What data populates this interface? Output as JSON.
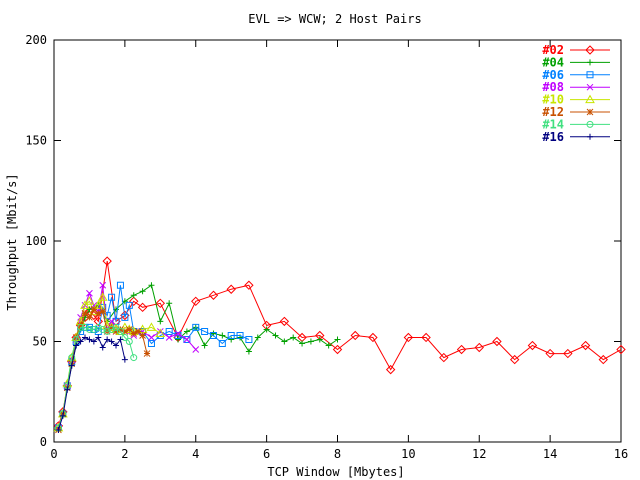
{
  "chart_data": {
    "type": "line",
    "title": "EVL => WCW; 2 Host Pairs",
    "xlabel": "TCP Window [Mbytes]",
    "ylabel": "Throughput [Mbit/s]",
    "xlim": [
      0,
      16
    ],
    "ylim": [
      0,
      200
    ],
    "xticks": [
      0,
      2,
      4,
      6,
      8,
      10,
      12,
      14,
      16
    ],
    "yticks": [
      0,
      50,
      100,
      150,
      200
    ],
    "grid": false,
    "legend_position": "top-right",
    "series": [
      {
        "name": "#02",
        "color": "#ff0000",
        "marker": "diamond",
        "x": [
          0.125,
          0.25,
          0.375,
          0.5,
          0.625,
          0.75,
          0.875,
          1.0,
          1.125,
          1.25,
          1.5,
          1.75,
          2.0,
          2.25,
          2.5,
          3.0,
          3.5,
          4.0,
          4.5,
          5.0,
          5.5,
          6.0,
          6.5,
          7.0,
          7.5,
          8.0,
          8.5,
          9.0,
          9.5,
          10.0,
          10.5,
          11.0,
          11.5,
          12.0,
          12.5,
          13.0,
          13.5,
          14.0,
          14.5,
          15.0,
          15.5,
          16.0
        ],
        "y": [
          8,
          15,
          28,
          40,
          52,
          58,
          62,
          65,
          63,
          60,
          90,
          60,
          63,
          70,
          67,
          69,
          52,
          70,
          73,
          76,
          78,
          58,
          60,
          52,
          53,
          46,
          53,
          52,
          36,
          52,
          52,
          42,
          46,
          47,
          50,
          41,
          48,
          44,
          44,
          48,
          41,
          46
        ]
      },
      {
        "name": "#04",
        "color": "#00a000",
        "marker": "plus",
        "x": [
          0.125,
          0.25,
          0.375,
          0.5,
          0.625,
          0.75,
          0.875,
          1.0,
          1.25,
          1.5,
          1.75,
          2.0,
          2.25,
          2.5,
          2.75,
          3.0,
          3.25,
          3.5,
          3.75,
          4.0,
          4.25,
          4.5,
          4.75,
          5.0,
          5.25,
          5.5,
          5.75,
          6.0,
          6.25,
          6.5,
          6.75,
          7.0,
          7.25,
          7.5,
          7.75,
          8.0
        ],
        "y": [
          7,
          14,
          27,
          38,
          48,
          56,
          62,
          66,
          68,
          60,
          66,
          70,
          73,
          75,
          78,
          60,
          69,
          51,
          55,
          57,
          48,
          54,
          53,
          51,
          52,
          45,
          52,
          56,
          53,
          50,
          52,
          49,
          50,
          51,
          48,
          51
        ]
      },
      {
        "name": "#06",
        "color": "#0080ff",
        "marker": "square",
        "x": [
          0.125,
          0.25,
          0.375,
          0.5,
          0.625,
          0.75,
          0.875,
          1.0,
          1.125,
          1.25,
          1.375,
          1.5,
          1.625,
          1.75,
          1.875,
          2.0,
          2.125,
          2.25,
          2.5,
          2.75,
          3.0,
          3.25,
          3.5,
          3.75,
          4.0,
          4.25,
          4.5,
          4.75,
          5.0,
          5.25,
          5.5
        ],
        "y": [
          7,
          14,
          28,
          40,
          50,
          55,
          57,
          57,
          56,
          55,
          67,
          63,
          72,
          60,
          78,
          62,
          68,
          55,
          55,
          49,
          53,
          55,
          53,
          51,
          57,
          55,
          53,
          49,
          53,
          53,
          51
        ]
      },
      {
        "name": "#08",
        "color": "#c000ff",
        "marker": "x",
        "x": [
          0.125,
          0.25,
          0.375,
          0.5,
          0.625,
          0.75,
          0.875,
          1.0,
          1.125,
          1.25,
          1.375,
          1.5,
          1.625,
          1.75,
          2.0,
          2.25,
          2.5,
          2.75,
          3.0,
          3.25,
          3.5,
          3.75,
          4.0
        ],
        "y": [
          7,
          14,
          28,
          41,
          51,
          62,
          68,
          74,
          68,
          65,
          78,
          56,
          60,
          55,
          55,
          53,
          55,
          52,
          55,
          52,
          54,
          51,
          46
        ]
      },
      {
        "name": "#10",
        "color": "#c8e600",
        "marker": "triangle",
        "x": [
          0.125,
          0.25,
          0.375,
          0.5,
          0.625,
          0.75,
          0.875,
          1.0,
          1.125,
          1.25,
          1.375,
          1.5,
          1.625,
          1.75,
          1.875,
          2.0,
          2.125,
          2.25,
          2.5,
          2.75,
          3.0
        ],
        "y": [
          7,
          14,
          29,
          42,
          52,
          60,
          68,
          70,
          65,
          68,
          72,
          58,
          57,
          56,
          55,
          57,
          56,
          55,
          56,
          57,
          54
        ]
      },
      {
        "name": "#12",
        "color": "#c85000",
        "marker": "star",
        "x": [
          0.125,
          0.25,
          0.375,
          0.5,
          0.625,
          0.75,
          0.875,
          1.0,
          1.125,
          1.25,
          1.375,
          1.5,
          1.625,
          1.75,
          1.875,
          2.0,
          2.125,
          2.25,
          2.375,
          2.5,
          2.625
        ],
        "y": [
          6,
          14,
          27,
          39,
          52,
          58,
          64,
          62,
          66,
          64,
          65,
          55,
          57,
          55,
          56,
          55,
          56,
          54,
          55,
          53,
          44
        ]
      },
      {
        "name": "#14",
        "color": "#40e080",
        "marker": "circle",
        "x": [
          0.125,
          0.25,
          0.375,
          0.5,
          0.625,
          0.75,
          0.875,
          1.0,
          1.125,
          1.25,
          1.375,
          1.5,
          1.625,
          1.75,
          1.875,
          2.0,
          2.125,
          2.25
        ],
        "y": [
          7,
          14,
          28,
          42,
          51,
          57,
          57,
          56,
          56,
          57,
          56,
          55,
          56,
          57,
          55,
          52,
          50,
          42
        ]
      },
      {
        "name": "#16",
        "color": "#000080",
        "marker": "plus",
        "x": [
          0.125,
          0.25,
          0.375,
          0.5,
          0.625,
          0.75,
          0.875,
          1.0,
          1.125,
          1.25,
          1.375,
          1.5,
          1.625,
          1.75,
          1.875,
          2.0
        ],
        "y": [
          6,
          13,
          26,
          38,
          48,
          50,
          52,
          51,
          50,
          52,
          47,
          51,
          50,
          48,
          51,
          41
        ]
      }
    ]
  }
}
